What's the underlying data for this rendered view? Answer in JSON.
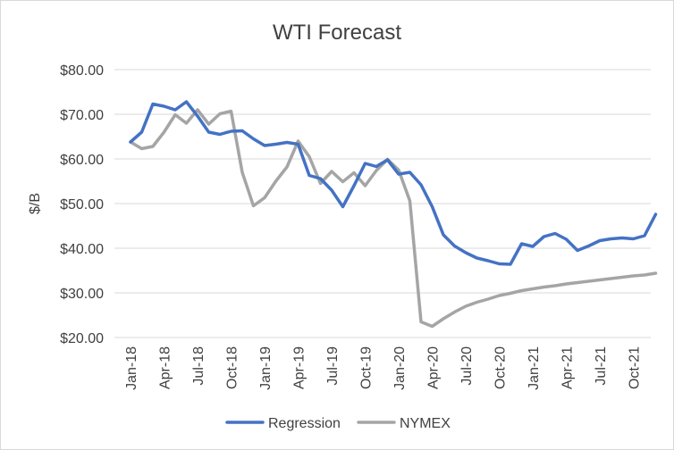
{
  "chart_data": {
    "type": "line",
    "title": "WTI Forecast",
    "xlabel": "",
    "ylabel": "$/B",
    "ylim": [
      20,
      80
    ],
    "yticks": [
      "$20.00",
      "$30.00",
      "$40.00",
      "$50.00",
      "$60.00",
      "$70.00",
      "$80.00"
    ],
    "x_tick_labels": [
      "Jan-18",
      "Apr-18",
      "Jul-18",
      "Oct-18",
      "Jan-19",
      "Apr-19",
      "Jul-19",
      "Oct-19",
      "Jan-20",
      "Apr-20",
      "Jul-20",
      "Oct-20",
      "Jan-21",
      "Apr-21",
      "Jul-21",
      "Oct-21"
    ],
    "x": [
      "Jan-18",
      "Feb-18",
      "Mar-18",
      "Apr-18",
      "May-18",
      "Jun-18",
      "Jul-18",
      "Aug-18",
      "Sep-18",
      "Oct-18",
      "Nov-18",
      "Dec-18",
      "Jan-19",
      "Feb-19",
      "Mar-19",
      "Apr-19",
      "May-19",
      "Jun-19",
      "Jul-19",
      "Aug-19",
      "Sep-19",
      "Oct-19",
      "Nov-19",
      "Dec-19",
      "Jan-20",
      "Feb-20",
      "Mar-20",
      "Apr-20",
      "May-20",
      "Jun-20",
      "Jul-20",
      "Aug-20",
      "Sep-20",
      "Oct-20",
      "Nov-20",
      "Dec-20",
      "Jan-21",
      "Feb-21",
      "Mar-21",
      "Apr-21",
      "May-21",
      "Jun-21",
      "Jul-21",
      "Aug-21",
      "Sep-21",
      "Oct-21",
      "Nov-21",
      "Dec-21"
    ],
    "grid": true,
    "legend_position": "bottom",
    "series": [
      {
        "name": "Regression",
        "color": "#4472C4",
        "values": [
          63.8,
          66.0,
          72.3,
          71.8,
          71.0,
          72.8,
          69.6,
          66.0,
          65.5,
          66.2,
          66.3,
          64.5,
          63.0,
          63.3,
          63.7,
          63.3,
          56.3,
          55.6,
          53.0,
          49.3,
          54.0,
          59.0,
          58.3,
          59.8,
          56.6,
          57.0,
          54.2,
          49.3,
          43.0,
          40.5,
          39.0,
          37.8,
          37.2,
          36.5,
          36.4,
          41.0,
          40.4,
          42.6,
          43.3,
          42.0,
          39.5,
          40.5,
          41.7,
          42.1,
          42.3,
          42.1,
          42.8,
          47.6
        ]
      },
      {
        "name": "NYMEX",
        "color": "#A5A5A5",
        "values": [
          63.8,
          62.3,
          62.8,
          66.0,
          69.9,
          68.0,
          71.0,
          67.8,
          70.1,
          70.7,
          57.0,
          49.5,
          51.3,
          55.0,
          58.2,
          64.0,
          60.5,
          54.5,
          57.2,
          54.9,
          56.9,
          54.0,
          57.4,
          59.9,
          57.5,
          50.6,
          23.5,
          22.5,
          24.2,
          25.7,
          27.0,
          27.9,
          28.6,
          29.4,
          29.9,
          30.5,
          30.9,
          31.3,
          31.6,
          32.0,
          32.3,
          32.6,
          32.9,
          33.2,
          33.5,
          33.8,
          34.0,
          34.4
        ]
      }
    ]
  }
}
